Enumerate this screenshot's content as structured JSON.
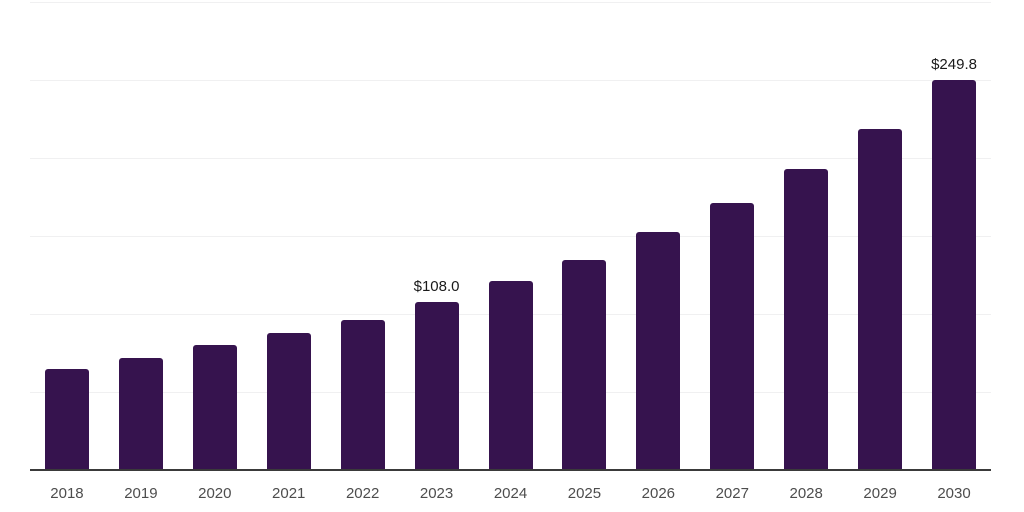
{
  "chart_data": {
    "type": "bar",
    "title": "",
    "xlabel": "",
    "ylabel": "",
    "categories": [
      "2018",
      "2019",
      "2020",
      "2021",
      "2022",
      "2023",
      "2024",
      "2025",
      "2026",
      "2027",
      "2028",
      "2029",
      "2030"
    ],
    "values": [
      64.5,
      71.5,
      80.4,
      88.1,
      96.3,
      108.0,
      121.2,
      134.6,
      152.4,
      171.0,
      193.2,
      218.8,
      249.8
    ],
    "bar_labels": [
      "",
      "",
      "",
      "",
      "",
      "$108.0",
      "",
      "",
      "",
      "",
      "",
      "",
      "$249.8"
    ],
    "ylim": [
      0,
      300
    ],
    "grid": {
      "horizontal": true,
      "step": 50,
      "y_tick_labels_visible": false
    },
    "legend": "none",
    "value_prefix": "$"
  },
  "style": {
    "background": "#ffffff",
    "bar_color": "#36134E",
    "gridline_color": "#f0f0f1",
    "axis_color": "#3a3a3a",
    "tick_label_color": "#4d4d4d",
    "data_label_color": "#1a1a1a"
  }
}
